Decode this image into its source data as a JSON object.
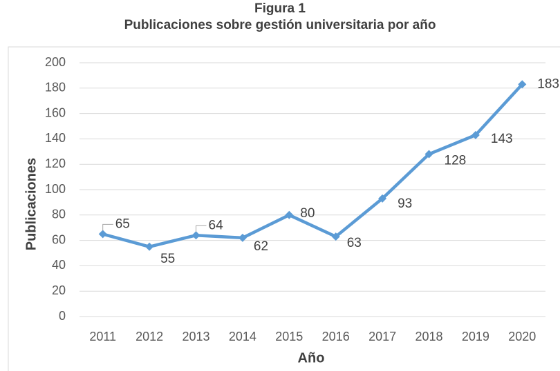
{
  "chart_data": {
    "type": "line",
    "title": "Figura 1",
    "subtitle": "Publicaciones sobre gestión universitaria por año",
    "x_label": "Año",
    "y_label": "Publicaciones",
    "categories": [
      "2011",
      "2012",
      "2013",
      "2014",
      "2015",
      "2016",
      "2017",
      "2018",
      "2019",
      "2020"
    ],
    "series": [
      {
        "name": "Publicaciones",
        "color": "#5b9bd5",
        "values": [
          65,
          55,
          64,
          62,
          80,
          63,
          93,
          128,
          143,
          183
        ]
      }
    ],
    "ylim": [
      0,
      200
    ],
    "yticks": [
      0,
      20,
      40,
      60,
      80,
      100,
      120,
      140,
      160,
      180,
      200
    ],
    "grid": true
  }
}
